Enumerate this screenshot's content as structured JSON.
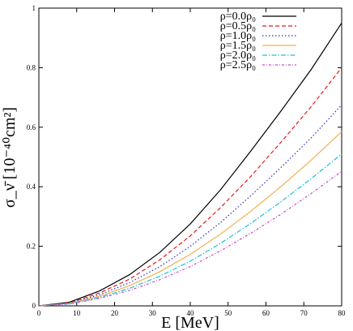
{
  "chart_data": {
    "type": "line",
    "xlabel": "E [MeV]",
    "ylabel": "σ_ν̄ [10⁻⁴⁰cm²]",
    "xlim": [
      0,
      80
    ],
    "ylim": [
      0,
      1
    ],
    "x_ticks": [
      "0",
      "10",
      "20",
      "30",
      "40",
      "50",
      "60",
      "70",
      "80"
    ],
    "y_ticks": [
      "0",
      "0.2",
      "0.4",
      "0.6",
      "0.8",
      "1"
    ],
    "grid": false,
    "legend_position": "top-right",
    "x": [
      0,
      8,
      16,
      24,
      32,
      40,
      48,
      56,
      64,
      72,
      80
    ],
    "series": [
      {
        "name": "ρ=0.0ρ₀",
        "color": "#000000",
        "dash": "solid",
        "values": [
          0,
          0.012,
          0.05,
          0.105,
          0.18,
          0.275,
          0.39,
          0.52,
          0.655,
          0.795,
          0.95
        ]
      },
      {
        "name": "ρ=0.5ρ₀",
        "color": "#e41a1c",
        "dash": "dashed",
        "values": [
          0,
          0.01,
          0.043,
          0.09,
          0.155,
          0.235,
          0.33,
          0.435,
          0.55,
          0.67,
          0.8
        ]
      },
      {
        "name": "ρ=1.0ρ₀",
        "color": "#2c2cc8",
        "dash": "dotted",
        "values": [
          0,
          0.009,
          0.037,
          0.078,
          0.132,
          0.2,
          0.28,
          0.37,
          0.465,
          0.565,
          0.675
        ]
      },
      {
        "name": "ρ=1.5ρ₀",
        "color": "#f0b050",
        "dash": "solid",
        "values": [
          0,
          0.008,
          0.032,
          0.068,
          0.115,
          0.173,
          0.241,
          0.318,
          0.401,
          0.49,
          0.585
        ]
      },
      {
        "name": "ρ=2.0ρ₀",
        "color": "#20c0e0",
        "dash": "dashdot",
        "values": [
          0,
          0.007,
          0.028,
          0.059,
          0.1,
          0.15,
          0.21,
          0.277,
          0.35,
          0.428,
          0.51
        ]
      },
      {
        "name": "ρ=2.5ρ₀",
        "color": "#c050c8",
        "dash": "dashdot-fine",
        "values": [
          0,
          0.006,
          0.025,
          0.052,
          0.088,
          0.132,
          0.185,
          0.244,
          0.308,
          0.378,
          0.452
        ]
      }
    ]
  }
}
